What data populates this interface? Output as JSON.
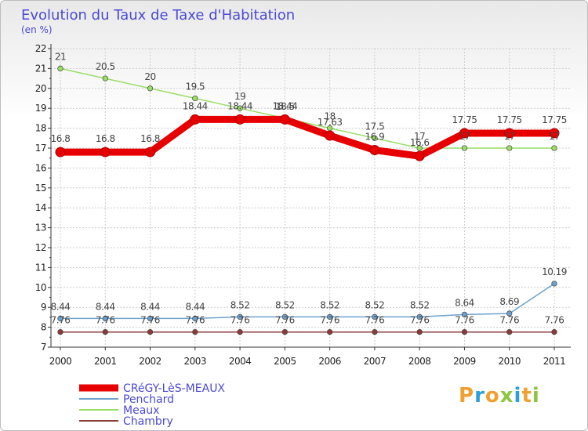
{
  "chart_data": {
    "type": "line",
    "title": "Evolution du Taux de Taxe d'Habitation",
    "subtitle": "(en %)",
    "categories": [
      "2000",
      "2001",
      "2002",
      "2003",
      "2004",
      "2005",
      "2006",
      "2007",
      "2008",
      "2009",
      "2010",
      "2011"
    ],
    "ylim": [
      7,
      22
    ],
    "yticks": [
      7,
      8,
      9,
      10,
      11,
      12,
      13,
      14,
      15,
      16,
      17,
      18,
      19,
      20,
      21,
      22
    ],
    "series": [
      {
        "name": "CRéGY-LèS-MEAUX",
        "color": "#e60000",
        "values": [
          16.8,
          16.8,
          16.8,
          18.44,
          18.44,
          18.44,
          17.63,
          16.9,
          16.6,
          17.75,
          17.75,
          17.75
        ],
        "labels": [
          "16.8",
          "16.8",
          "16.8",
          "18.44",
          "18.44",
          "18.44",
          "17.63",
          "16.9",
          "16.6",
          "17.75",
          "17.75",
          "17.75"
        ]
      },
      {
        "name": "Penchard",
        "color": "#6fa1cd",
        "values": [
          8.44,
          8.44,
          8.44,
          8.44,
          8.52,
          8.52,
          8.52,
          8.52,
          8.52,
          8.64,
          8.69,
          10.19
        ],
        "labels": [
          "8.44",
          "8.44",
          "8.44",
          "8.44",
          "8.52",
          "8.52",
          "8.52",
          "8.52",
          "8.52",
          "8.64",
          "8.69",
          "10.19"
        ]
      },
      {
        "name": "Meaux",
        "color": "#99dd66",
        "values": [
          21,
          20.5,
          20,
          19.5,
          19,
          18.5,
          18,
          17.5,
          17,
          17,
          17,
          17
        ],
        "labels": [
          "21",
          "20.5",
          "20",
          "19.5",
          "19",
          "18.5",
          "18",
          "17.5",
          "17",
          "17",
          "17",
          "17"
        ]
      },
      {
        "name": "Chambry",
        "color": "#8c3a3a",
        "values": [
          7.76,
          7.76,
          7.76,
          7.76,
          7.76,
          7.76,
          7.76,
          7.76,
          7.76,
          7.76,
          7.76,
          7.76
        ],
        "labels": [
          "7.76",
          "7.76",
          "7.76",
          "7.76",
          "7.76",
          "7.76",
          "7.76",
          "7.76",
          "7.76",
          "7.76",
          "7.76",
          "7.76"
        ]
      }
    ]
  },
  "brand": {
    "letters": [
      "P",
      "r",
      "o",
      "x",
      "i",
      "t",
      "i"
    ],
    "colors": [
      "#f0a030",
      "#2a9fd8",
      "#f0a030",
      "#8cc63f",
      "#2a9fd8",
      "#f0a030",
      "#8cc63f"
    ]
  }
}
